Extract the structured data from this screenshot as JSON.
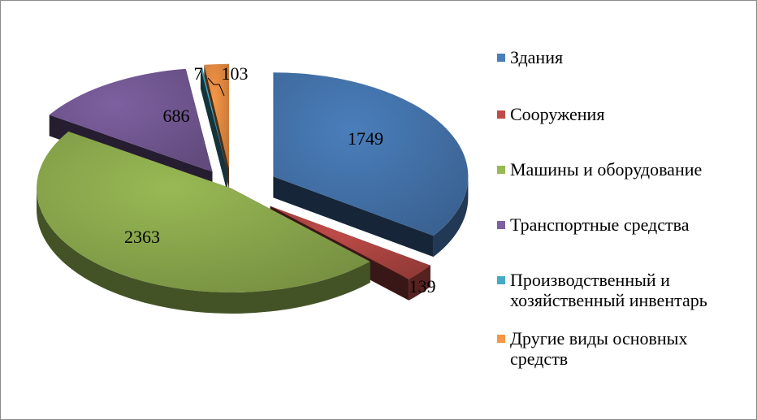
{
  "chart_data": {
    "type": "pie",
    "categories": [
      "Здания",
      "Сооружения",
      "Машины и оборудование",
      "Транспортные средства",
      "Производственный и хозяйственный инвентарь",
      "Другие виды основных средств"
    ],
    "legend_lines": [
      [
        "Здания"
      ],
      [
        "Сооружения"
      ],
      [
        "Машины и оборудование"
      ],
      [
        "Транспортные средства"
      ],
      [
        "Производственный и",
        "хозяйственный инвентарь"
      ],
      [
        "Другие виды основных",
        "средств"
      ]
    ],
    "values": [
      1749,
      139,
      2363,
      686,
      7,
      103
    ],
    "colors": [
      "#4a7ebb",
      "#be4b48",
      "#98b954",
      "#7d60a0",
      "#46aac5",
      "#f79646"
    ],
    "legend_position": "right",
    "exploded": true,
    "three_d": true
  }
}
